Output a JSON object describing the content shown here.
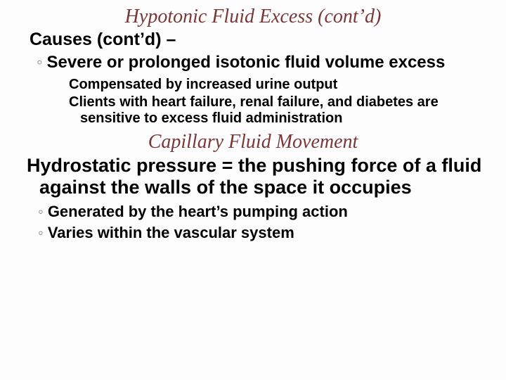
{
  "colors": {
    "title_color": "#7a3737",
    "body_text_color": "#000000",
    "sub_bullet_color": "#888888",
    "background_color": "#fdfdfd"
  },
  "typography": {
    "title_font": "Georgia, serif",
    "title_style": "italic",
    "title_size_pt": 28,
    "body_font": "Arial, sans-serif",
    "lvl1_size_pt": 25,
    "lvl1b_size_pt": 27,
    "lvl2_size_pt": 24,
    "lvl2b_size_pt": 22,
    "lvl3_size_pt": 20,
    "body_weight": "bold"
  },
  "section1": {
    "title": "Hypotonic Fluid Excess (cont’d)",
    "lvl1": "Causes (cont’d) –",
    "lvl2": "Severe or prolonged isotonic fluid volume excess",
    "lvl3a": "Compensated by increased urine output",
    "lvl3b": "Clients with heart failure, renal failure, and diabetes are sensitive to excess fluid administration"
  },
  "section2": {
    "title": "Capillary Fluid Movement",
    "lvl1": "Hydrostatic pressure = the pushing force of a fluid against the walls of the space it occupies",
    "lvl2a": "Generated by the heart’s pumping action",
    "lvl2b": "Varies within the vascular system"
  },
  "bullets": {
    "script": "൓",
    "circle": "◦"
  }
}
